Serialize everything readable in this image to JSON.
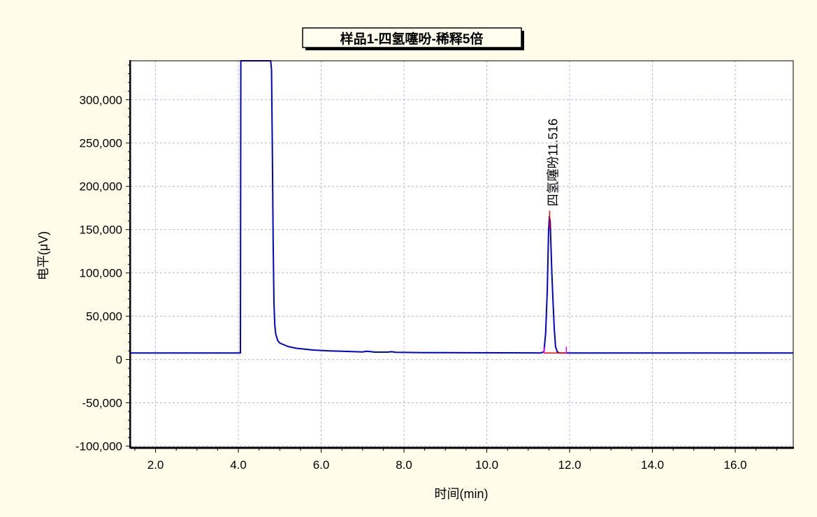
{
  "chart_data": {
    "type": "line",
    "title": "样品1-四氢噻吩-稀释5倍",
    "xlabel": "时间(min)",
    "ylabel": "电平(μV)",
    "xlim": [
      1.4,
      17.4
    ],
    "ylim": [
      -102000,
      345000
    ],
    "x_ticks": [
      2.0,
      4.0,
      6.0,
      8.0,
      10.0,
      12.0,
      14.0,
      16.0
    ],
    "x_tick_labels": [
      "2.0",
      "4.0",
      "6.0",
      "8.0",
      "10.0",
      "12.0",
      "14.0",
      "16.0"
    ],
    "y_ticks": [
      -100000,
      -50000,
      0,
      50000,
      100000,
      150000,
      200000,
      250000,
      300000
    ],
    "y_tick_labels": [
      "-100,000",
      "-50,000",
      "0",
      "50,000",
      "100,000",
      "150,000",
      "200,000",
      "250,000",
      "300,000"
    ],
    "grid": true,
    "series": [
      {
        "color": "#0000cc",
        "x": [
          1.4,
          4.05,
          4.06,
          4.78,
          4.8,
          4.82,
          4.84,
          4.86,
          4.88,
          4.9,
          4.95,
          5.0,
          5.1,
          5.2,
          5.4,
          5.6,
          5.8,
          6.0,
          6.2,
          6.5,
          6.8,
          7.0,
          7.1,
          7.2,
          7.3,
          7.6,
          7.7,
          7.8,
          8.5,
          9.5,
          10.5,
          11.3,
          11.38,
          11.42,
          11.46,
          11.49,
          11.51,
          11.53,
          11.55,
          11.57,
          11.6,
          11.63,
          11.66,
          11.7,
          11.75,
          12.0,
          14.0,
          17.4
        ],
        "y": [
          7500,
          7500,
          345000,
          345000,
          335000,
          250000,
          140000,
          65000,
          40000,
          30000,
          22000,
          19000,
          17000,
          15000,
          13000,
          12000,
          11000,
          10500,
          10000,
          9500,
          9000,
          8800,
          9500,
          9000,
          8500,
          8500,
          9000,
          8300,
          8000,
          7800,
          7700,
          7600,
          9000,
          30000,
          80000,
          145000,
          165000,
          160000,
          130000,
          100000,
          65000,
          35000,
          15000,
          9000,
          7600,
          7500,
          7500,
          7500
        ]
      }
    ],
    "peak_label": {
      "text": "四氢噻吩11.516",
      "x": 11.516,
      "y": 172000,
      "color": "#ff0000",
      "marker_color": "#ff00ff",
      "start_x": 11.38,
      "end_x": 11.92
    }
  },
  "colors": {
    "page_bg": "#fffdea",
    "plot_bg": "#ffffff",
    "grid": "#b8b8d8",
    "axis": "#000000"
  }
}
